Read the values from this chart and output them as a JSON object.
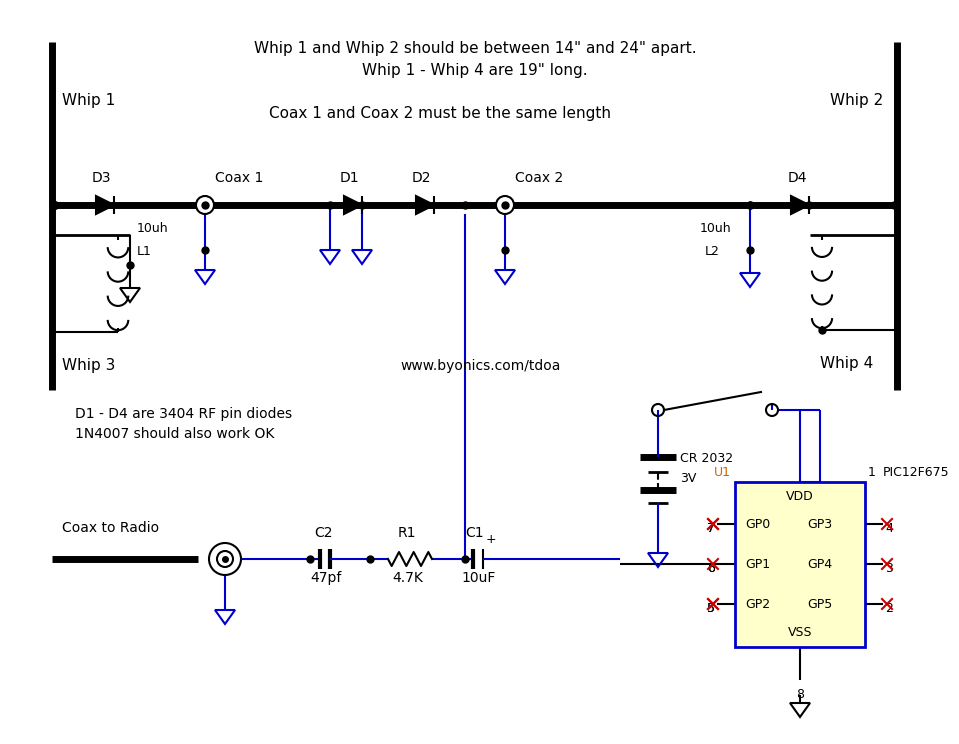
{
  "title_line1": "Whip 1 and Whip 2 should be between 14\" and 24\" apart.",
  "title_line2": "Whip 1 - Whip 4 are 19\" long.",
  "title_line3": "Coax 1 and Coax 2 must be the same length",
  "label_whip1": "Whip 1",
  "label_whip2": "Whip 2",
  "label_whip3": "Whip 3",
  "label_whip4": "Whip 4",
  "label_coax1": "Coax 1",
  "label_coax2": "Coax 2",
  "label_d1": "D1",
  "label_d2": "D2",
  "label_d3": "D3",
  "label_d4": "D4",
  "label_l1": "L1",
  "label_l2": "L2",
  "label_10uh1": "10uh",
  "label_10uh2": "10uh",
  "label_c1": "C1",
  "label_c2": "C2",
  "label_r1": "R1",
  "label_10uF": "10uF",
  "label_47pf": "47pf",
  "label_47k": "4.7K",
  "label_cr2032": "CR 2032",
  "label_3v": "3V",
  "label_coax_radio": "Coax to Radio",
  "label_diode_note1": "D1 - D4 are 3404 RF pin diodes",
  "label_diode_note2": "1N4007 should also work OK",
  "label_url": "www.byonics.com/tdoa",
  "label_u1": "U1",
  "label_pin1": "1",
  "label_pic": "PIC12F675",
  "label_vdd": "VDD",
  "label_vss": "VSS",
  "label_gp0": "GP0",
  "label_gp1": "GP1",
  "label_gp2": "GP2",
  "label_gp3": "GP3",
  "label_gp4": "GP4",
  "label_gp5": "GP5",
  "label_pin7": "7",
  "label_pin6": "6",
  "label_pin5": "5",
  "label_pin4": "4",
  "label_pin3": "3",
  "label_pin2": "2",
  "label_pin8": "8",
  "bg_color": "#ffffff",
  "line_color": "#000000",
  "blue_color": "#0000cd",
  "yellow_fill": "#ffffcc",
  "ic_border": "#0000cd",
  "text_color_black": "#000000",
  "text_color_blue": "#0000cd",
  "text_color_orange": "#cc6600",
  "red_x_color": "#cc0000"
}
